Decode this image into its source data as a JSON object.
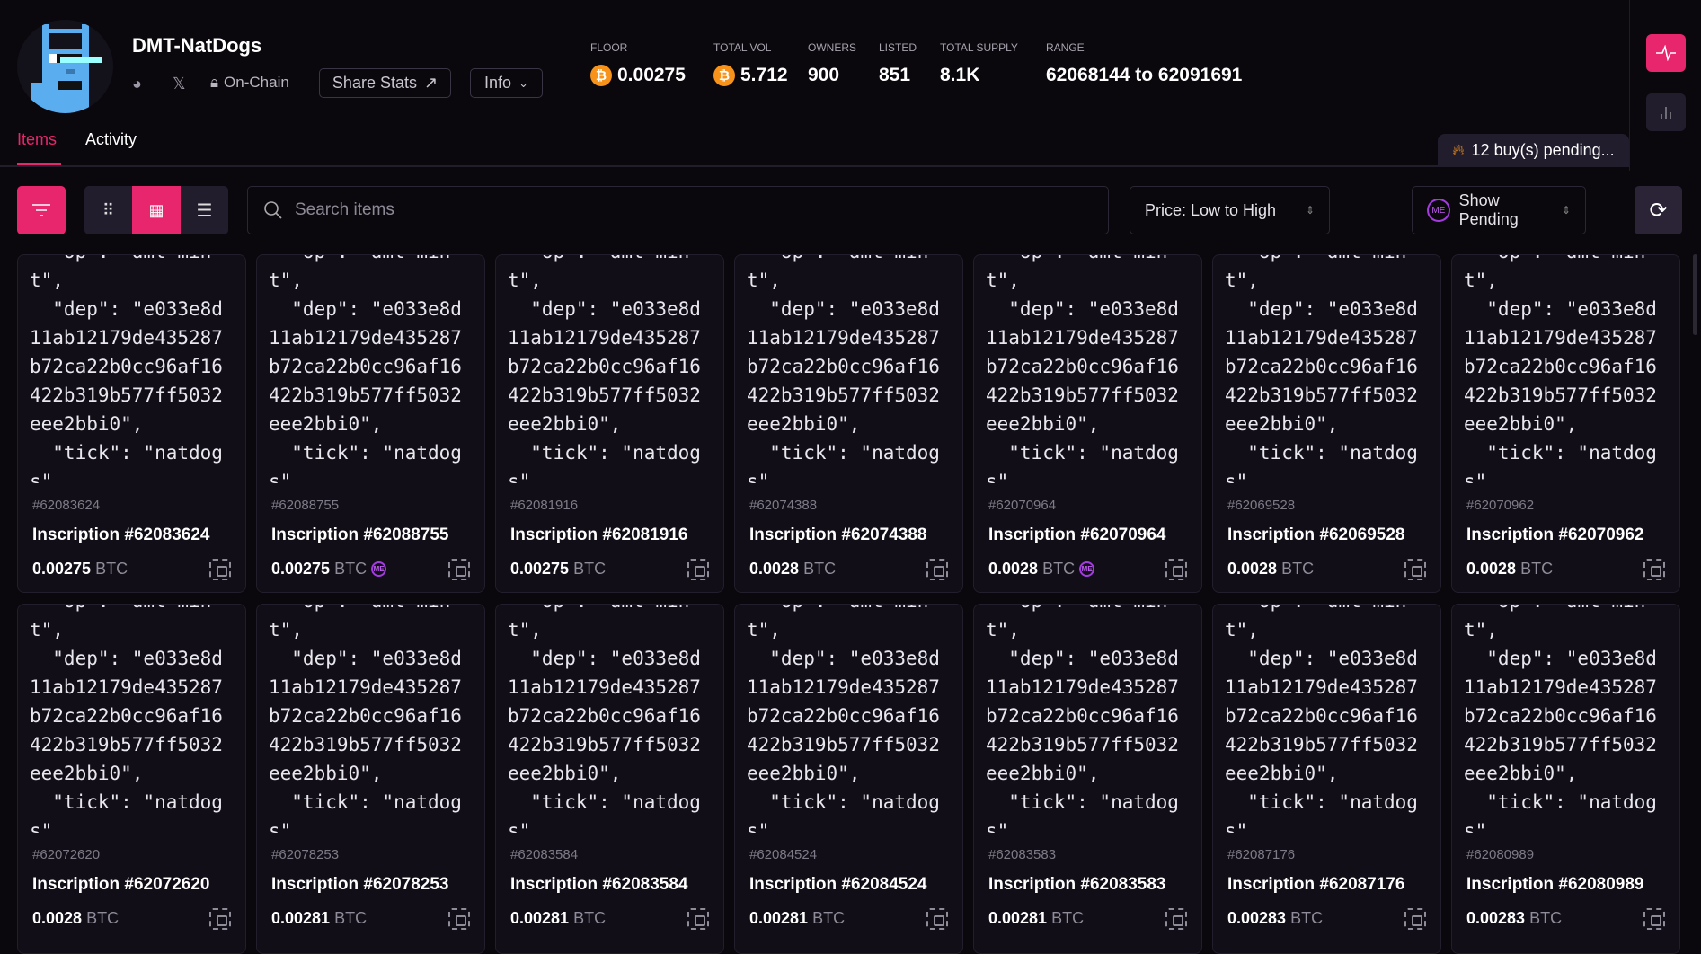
{
  "collection": {
    "name": "DMT-NatDogs",
    "links": {
      "discord": "discord-icon",
      "x": "x-icon",
      "onchain": "On-Chain"
    },
    "share_label": "Share Stats",
    "info_label": "Info"
  },
  "stats": [
    {
      "label": "FLOOR",
      "value": "0.00275",
      "btc": true
    },
    {
      "label": "TOTAL VOL",
      "value": "5.712",
      "btc": true
    },
    {
      "label": "OWNERS",
      "value": "900"
    },
    {
      "label": "LISTED",
      "value": "851"
    },
    {
      "label": "TOTAL SUPPLY",
      "value": "8.1K"
    },
    {
      "label": "RANGE",
      "value": "62068144 to 62091691"
    }
  ],
  "tabs": [
    {
      "label": "Items",
      "active": true
    },
    {
      "label": "Activity"
    }
  ],
  "pending": "12 buy(s) pending...",
  "toolbar": {
    "search_placeholder": "Search items",
    "sort": "Price: Low to High",
    "pending_filter": "Show Pending"
  },
  "colors": {
    "accent": "#e8266e",
    "bg": "#0b080d",
    "card": "#110e17"
  },
  "code_lines": [
    "  \"op\": \"dmt-min",
    "t\",",
    "  \"dep\": \"e033e8d",
    "11ab12179de435287",
    "b72ca22b0cc96af16",
    "422b319b577ff5032",
    "eee2bbi0\",",
    "  \"tick\": \"natdog",
    "s\""
  ],
  "currency": "BTC",
  "items": [
    {
      "num": "#62083624",
      "name": "Inscription #62083624",
      "price": "0.00275",
      "me": false
    },
    {
      "num": "#62088755",
      "name": "Inscription #62088755",
      "price": "0.00275",
      "me": true
    },
    {
      "num": "#62081916",
      "name": "Inscription #62081916",
      "price": "0.00275",
      "me": false
    },
    {
      "num": "#62074388",
      "name": "Inscription #62074388",
      "price": "0.0028",
      "me": false
    },
    {
      "num": "#62070964",
      "name": "Inscription #62070964",
      "price": "0.0028",
      "me": true
    },
    {
      "num": "#62069528",
      "name": "Inscription #62069528",
      "price": "0.0028",
      "me": false
    },
    {
      "num": "#62070962",
      "name": "Inscription #62070962",
      "price": "0.0028",
      "me": false
    },
    {
      "num": "#62072620",
      "name": "Inscription #62072620",
      "price": "0.0028",
      "me": false
    },
    {
      "num": "#62078253",
      "name": "Inscription #62078253",
      "price": "0.00281",
      "me": false
    },
    {
      "num": "#62083584",
      "name": "Inscription #62083584",
      "price": "0.00281",
      "me": false
    },
    {
      "num": "#62084524",
      "name": "Inscription #62084524",
      "price": "0.00281",
      "me": false
    },
    {
      "num": "#62083583",
      "name": "Inscription #62083583",
      "price": "0.00281",
      "me": false
    },
    {
      "num": "#62087176",
      "name": "Inscription #62087176",
      "price": "0.00283",
      "me": false
    },
    {
      "num": "#62080989",
      "name": "Inscription #62080989",
      "price": "0.00283",
      "me": false
    }
  ]
}
